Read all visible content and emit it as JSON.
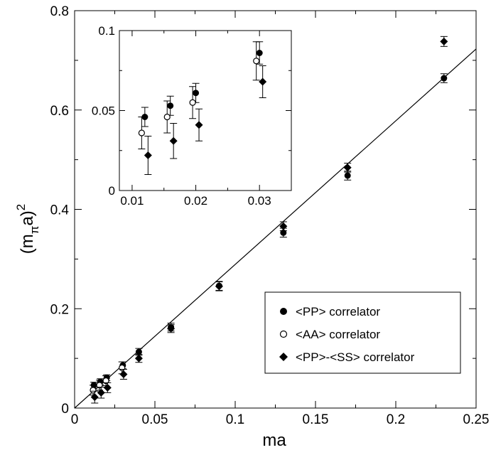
{
  "chart_data": {
    "type": "scatter",
    "title": "",
    "xlabel": "ma",
    "ylabel_base": "(m",
    "ylabel_sub": "π",
    "ylabel_tail": "a)",
    "ylabel_sup": "2",
    "xlim": [
      0,
      0.25
    ],
    "ylim": [
      0,
      0.8
    ],
    "xticks": [
      0,
      0.05,
      0.1,
      0.15,
      0.2,
      0.25
    ],
    "xtick_labels": [
      "0",
      "0.05",
      "0.1",
      "0.15",
      "0.2",
      "0.25"
    ],
    "yticks": [
      0,
      0.2,
      0.4,
      0.6,
      0.8
    ],
    "ytick_labels": [
      "0",
      "0.2",
      "0.4",
      "0.6",
      "0.8"
    ],
    "grid": false,
    "legend_position": "bottom-right",
    "fit_line": {
      "x": [
        0,
        0.25
      ],
      "y": [
        0.0,
        0.7228
      ]
    },
    "series": [
      {
        "name": "<PP> correlator",
        "marker": "filled-circle",
        "points": [
          {
            "x": 0.012,
            "y": 0.046,
            "err": 0.006
          },
          {
            "x": 0.016,
            "y": 0.053,
            "err": 0.006
          },
          {
            "x": 0.02,
            "y": 0.061,
            "err": 0.006
          },
          {
            "x": 0.03,
            "y": 0.086,
            "err": 0.007
          },
          {
            "x": 0.04,
            "y": 0.113,
            "err": 0.007
          },
          {
            "x": 0.06,
            "y": 0.163,
            "err": 0.008
          },
          {
            "x": 0.09,
            "y": 0.246,
            "err": 0.009
          },
          {
            "x": 0.13,
            "y": 0.353,
            "err": 0.009
          },
          {
            "x": 0.17,
            "y": 0.468,
            "err": 0.009
          },
          {
            "x": 0.23,
            "y": 0.664,
            "err": 0.009
          }
        ]
      },
      {
        "name": "<AA> correlator",
        "marker": "open-circle",
        "points": [
          {
            "x": 0.0115,
            "y": 0.036,
            "err": 0.01
          },
          {
            "x": 0.0155,
            "y": 0.046,
            "err": 0.01
          },
          {
            "x": 0.0195,
            "y": 0.055,
            "err": 0.01
          },
          {
            "x": 0.0295,
            "y": 0.081,
            "err": 0.012
          }
        ]
      },
      {
        "name": "<PP>-<SS> correlator",
        "marker": "filled-diamond",
        "points": [
          {
            "x": 0.0125,
            "y": 0.022,
            "err": 0.012
          },
          {
            "x": 0.0165,
            "y": 0.031,
            "err": 0.011
          },
          {
            "x": 0.0205,
            "y": 0.041,
            "err": 0.01
          },
          {
            "x": 0.0305,
            "y": 0.068,
            "err": 0.01
          },
          {
            "x": 0.04,
            "y": 0.1,
            "err": 0.008
          },
          {
            "x": 0.06,
            "y": 0.16,
            "err": 0.008
          },
          {
            "x": 0.09,
            "y": 0.245,
            "err": 0.009
          },
          {
            "x": 0.13,
            "y": 0.366,
            "err": 0.009
          },
          {
            "x": 0.17,
            "y": 0.484,
            "err": 0.009
          },
          {
            "x": 0.23,
            "y": 0.738,
            "err": 0.01
          }
        ]
      }
    ],
    "inset": {
      "xlim": [
        0.008,
        0.035
      ],
      "ylim": [
        0,
        0.1
      ],
      "xticks": [
        0.01,
        0.02,
        0.03
      ],
      "xtick_labels": [
        "0.01",
        "0.02",
        "0.03"
      ],
      "yticks": [
        0,
        0.05,
        0.1
      ],
      "ytick_labels": [
        "0",
        "0.05",
        "0.1"
      ],
      "series_names": [
        "<PP> correlator",
        "<AA> correlator",
        "<PP>-<SS> correlator"
      ],
      "point_limit_x": 0.031
    }
  }
}
